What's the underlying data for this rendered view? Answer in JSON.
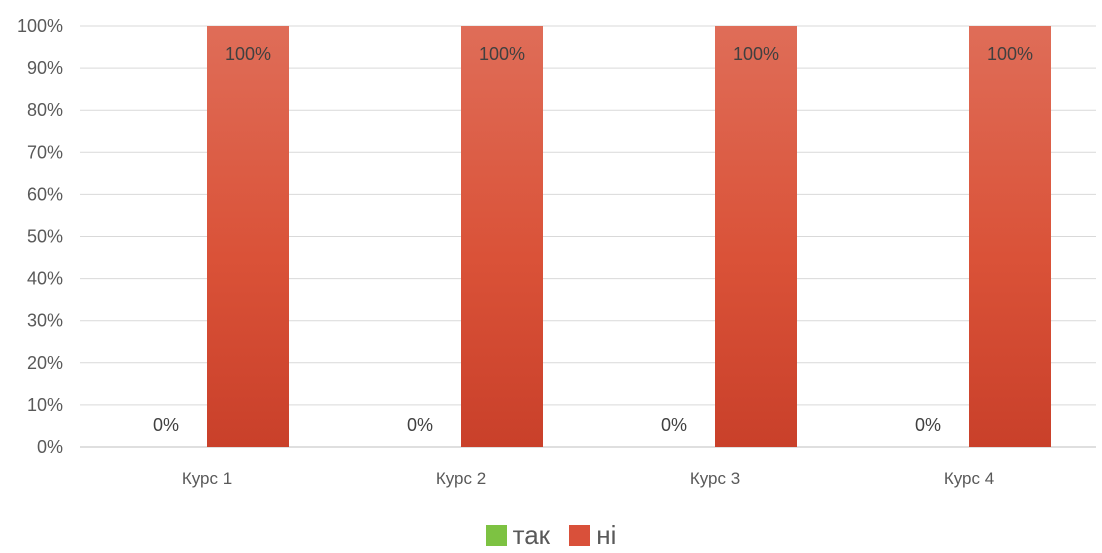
{
  "chart_data": {
    "type": "bar",
    "categories": [
      "Курс 1",
      "Курс 2",
      "Курс 3",
      "Курс 4"
    ],
    "series": [
      {
        "name": "так",
        "values": [
          0,
          0,
          0,
          0
        ],
        "color": "#7dc242",
        "labels": [
          "0%",
          "0%",
          "0%",
          "0%"
        ]
      },
      {
        "name": "ні",
        "values": [
          100,
          100,
          100,
          100
        ],
        "color": "#d9503a",
        "labels": [
          "100%",
          "100%",
          "100%",
          "100%"
        ]
      }
    ],
    "title": "",
    "xlabel": "",
    "ylabel": "",
    "ylim": [
      0,
      100
    ],
    "yticks": [
      "0%",
      "10%",
      "20%",
      "30%",
      "40%",
      "50%",
      "60%",
      "70%",
      "80%",
      "90%",
      "100%"
    ],
    "grid": true,
    "legend_position": "bottom"
  }
}
